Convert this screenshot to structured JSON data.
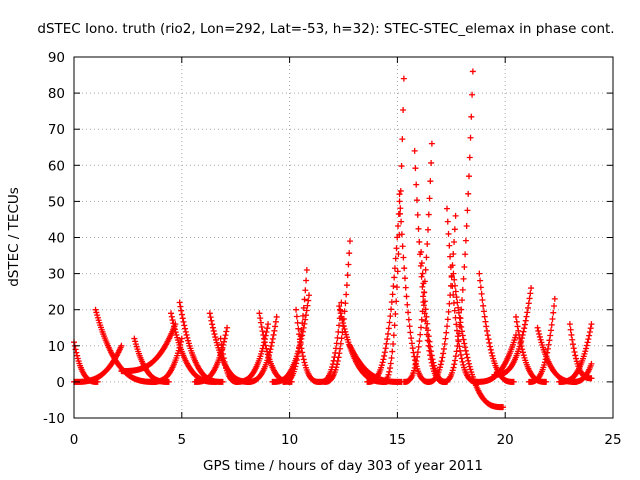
{
  "chart_data": {
    "type": "scatter",
    "title": "dSTEC Iono. truth (rio2, Lon=292, Lat=-53, h=32): STEC-STEC_elemax in phase cont.",
    "xlabel": "GPS time / hours of day 303 of year 2011",
    "ylabel": "dSTEC  / TECUs",
    "xlim": [
      0,
      25
    ],
    "ylim": [
      -10,
      90
    ],
    "xticks": [
      "0",
      "5",
      "10",
      "15",
      "20",
      "25"
    ],
    "yticks": [
      "-10",
      "0",
      "10",
      "20",
      "30",
      "40",
      "50",
      "60",
      "70",
      "80",
      "90"
    ],
    "grid": true,
    "marker": "plus",
    "series_color": "#ff0000",
    "arcs": [
      [
        0.0,
        1.1,
        11,
        0
      ],
      [
        0.0,
        2.2,
        0,
        10
      ],
      [
        1.0,
        3.8,
        20,
        0
      ],
      [
        2.2,
        4.7,
        3,
        16
      ],
      [
        2.8,
        4.4,
        12,
        0
      ],
      [
        3.6,
        5.0,
        0,
        12
      ],
      [
        4.5,
        6.6,
        19,
        0
      ],
      [
        4.9,
        6.9,
        22,
        0
      ],
      [
        5.6,
        7.1,
        0,
        15
      ],
      [
        6.3,
        8.2,
        19,
        0
      ],
      [
        6.8,
        7.6,
        12,
        0
      ],
      [
        7.5,
        9.0,
        0,
        16
      ],
      [
        8.0,
        9.4,
        0,
        18
      ],
      [
        8.6,
        10.1,
        19,
        0
      ],
      [
        9.2,
        10.9,
        0,
        24
      ],
      [
        9.7,
        10.8,
        0,
        31
      ],
      [
        10.3,
        11.4,
        20,
        0
      ],
      [
        11.4,
        12.4,
        0,
        22
      ],
      [
        11.6,
        12.8,
        0,
        39
      ],
      [
        12.3,
        14.5,
        21,
        0
      ],
      [
        12.8,
        15.2,
        10,
        0
      ],
      [
        13.6,
        15.1,
        0,
        50
      ],
      [
        14.3,
        15.3,
        0,
        84
      ],
      [
        15.1,
        16.5,
        52,
        0
      ],
      [
        15.3,
        16.6,
        0,
        66
      ],
      [
        15.8,
        17.2,
        64,
        0
      ],
      [
        16.1,
        17.3,
        36,
        0
      ],
      [
        16.4,
        17.7,
        0,
        46
      ],
      [
        17.1,
        18.5,
        0,
        86
      ],
      [
        17.3,
        18.7,
        48,
        0
      ],
      [
        17.6,
        19.9,
        30,
        -7
      ],
      [
        18.6,
        20.5,
        0,
        13
      ],
      [
        18.8,
        20.4,
        30,
        0
      ],
      [
        19.5,
        21.2,
        2,
        26
      ],
      [
        20.5,
        21.9,
        18,
        0
      ],
      [
        21.1,
        22.3,
        0,
        23
      ],
      [
        21.5,
        23.3,
        15,
        0
      ],
      [
        22.5,
        24.0,
        0,
        16
      ],
      [
        23.0,
        24.0,
        16,
        1
      ],
      [
        23.1,
        24.0,
        0,
        5
      ]
    ]
  }
}
